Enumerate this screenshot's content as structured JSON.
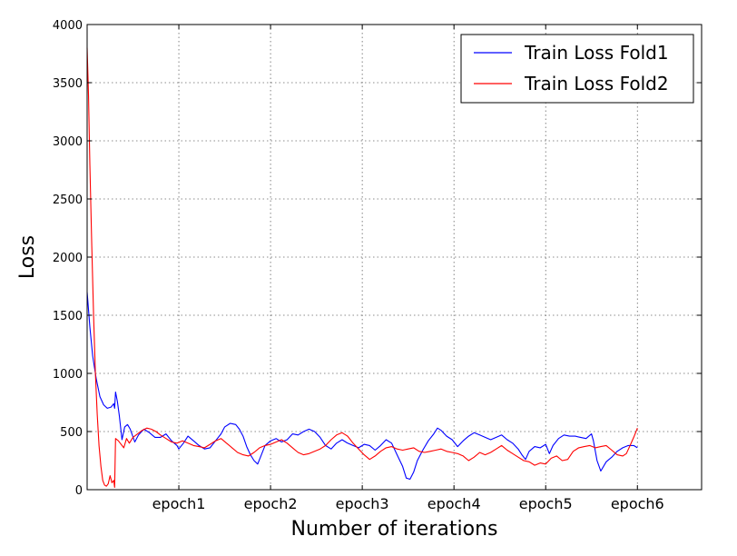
{
  "chart_data": {
    "type": "line",
    "title": "",
    "xlabel": "Number of iterations",
    "ylabel": "Loss",
    "xlim": [
      0,
      6.7
    ],
    "ylim": [
      0,
      4000
    ],
    "yticks": [
      0,
      500,
      1000,
      1500,
      2000,
      2500,
      3000,
      3500,
      4000
    ],
    "xticks": [
      {
        "value": 1,
        "label": "epoch1"
      },
      {
        "value": 2,
        "label": "epoch2"
      },
      {
        "value": 3,
        "label": "epoch3"
      },
      {
        "value": 4,
        "label": "epoch4"
      },
      {
        "value": 5,
        "label": "epoch5"
      },
      {
        "value": 6,
        "label": "epoch6"
      }
    ],
    "grid": true,
    "legend_position": "top-right",
    "series": [
      {
        "name": "Train Loss Fold1",
        "color": "#0000ff",
        "points": [
          [
            0.0,
            1700
          ],
          [
            0.03,
            1400
          ],
          [
            0.06,
            1150
          ],
          [
            0.1,
            950
          ],
          [
            0.14,
            800
          ],
          [
            0.18,
            730
          ],
          [
            0.22,
            700
          ],
          [
            0.26,
            710
          ],
          [
            0.29,
            740
          ],
          [
            0.3,
            700
          ],
          [
            0.31,
            840
          ],
          [
            0.33,
            760
          ],
          [
            0.35,
            640
          ],
          [
            0.38,
            430
          ],
          [
            0.41,
            540
          ],
          [
            0.44,
            560
          ],
          [
            0.47,
            520
          ],
          [
            0.52,
            410
          ],
          [
            0.56,
            470
          ],
          [
            0.62,
            520
          ],
          [
            0.68,
            490
          ],
          [
            0.74,
            450
          ],
          [
            0.8,
            450
          ],
          [
            0.86,
            480
          ],
          [
            0.92,
            420
          ],
          [
            0.98,
            380
          ],
          [
            1.0,
            350
          ],
          [
            1.05,
            400
          ],
          [
            1.1,
            460
          ],
          [
            1.16,
            420
          ],
          [
            1.22,
            380
          ],
          [
            1.28,
            350
          ],
          [
            1.34,
            360
          ],
          [
            1.4,
            420
          ],
          [
            1.46,
            480
          ],
          [
            1.5,
            540
          ],
          [
            1.56,
            570
          ],
          [
            1.62,
            560
          ],
          [
            1.66,
            520
          ],
          [
            1.7,
            460
          ],
          [
            1.74,
            370
          ],
          [
            1.78,
            300
          ],
          [
            1.82,
            250
          ],
          [
            1.86,
            220
          ],
          [
            1.9,
            300
          ],
          [
            1.94,
            380
          ],
          [
            2.0,
            420
          ],
          [
            2.06,
            440
          ],
          [
            2.12,
            410
          ],
          [
            2.18,
            430
          ],
          [
            2.24,
            480
          ],
          [
            2.3,
            470
          ],
          [
            2.36,
            500
          ],
          [
            2.42,
            520
          ],
          [
            2.48,
            500
          ],
          [
            2.54,
            450
          ],
          [
            2.6,
            380
          ],
          [
            2.66,
            350
          ],
          [
            2.72,
            400
          ],
          [
            2.78,
            430
          ],
          [
            2.84,
            400
          ],
          [
            2.9,
            380
          ],
          [
            2.96,
            360
          ],
          [
            3.02,
            390
          ],
          [
            3.08,
            380
          ],
          [
            3.14,
            340
          ],
          [
            3.2,
            380
          ],
          [
            3.26,
            430
          ],
          [
            3.32,
            400
          ],
          [
            3.38,
            300
          ],
          [
            3.44,
            200
          ],
          [
            3.48,
            100
          ],
          [
            3.52,
            90
          ],
          [
            3.56,
            150
          ],
          [
            3.6,
            250
          ],
          [
            3.66,
            340
          ],
          [
            3.72,
            420
          ],
          [
            3.78,
            480
          ],
          [
            3.82,
            530
          ],
          [
            3.86,
            510
          ],
          [
            3.92,
            460
          ],
          [
            3.98,
            430
          ],
          [
            4.04,
            370
          ],
          [
            4.1,
            420
          ],
          [
            4.16,
            460
          ],
          [
            4.22,
            490
          ],
          [
            4.28,
            470
          ],
          [
            4.34,
            450
          ],
          [
            4.4,
            430
          ],
          [
            4.46,
            450
          ],
          [
            4.52,
            470
          ],
          [
            4.58,
            430
          ],
          [
            4.64,
            400
          ],
          [
            4.7,
            350
          ],
          [
            4.74,
            300
          ],
          [
            4.78,
            260
          ],
          [
            4.82,
            330
          ],
          [
            4.88,
            370
          ],
          [
            4.94,
            360
          ],
          [
            5.0,
            390
          ],
          [
            5.04,
            310
          ],
          [
            5.08,
            380
          ],
          [
            5.14,
            440
          ],
          [
            5.2,
            470
          ],
          [
            5.26,
            460
          ],
          [
            5.32,
            460
          ],
          [
            5.38,
            450
          ],
          [
            5.44,
            440
          ],
          [
            5.5,
            480
          ],
          [
            5.52,
            420
          ],
          [
            5.56,
            250
          ],
          [
            5.6,
            160
          ],
          [
            5.66,
            240
          ],
          [
            5.72,
            280
          ],
          [
            5.78,
            330
          ],
          [
            5.84,
            360
          ],
          [
            5.9,
            380
          ],
          [
            5.96,
            380
          ],
          [
            6.0,
            360
          ]
        ]
      },
      {
        "name": "Train Loss Fold2",
        "color": "#ff0000",
        "points": [
          [
            0.0,
            3800
          ],
          [
            0.015,
            3400
          ],
          [
            0.03,
            2800
          ],
          [
            0.05,
            2100
          ],
          [
            0.07,
            1500
          ],
          [
            0.09,
            1000
          ],
          [
            0.11,
            650
          ],
          [
            0.13,
            380
          ],
          [
            0.15,
            200
          ],
          [
            0.17,
            80
          ],
          [
            0.19,
            40
          ],
          [
            0.21,
            30
          ],
          [
            0.23,
            50
          ],
          [
            0.25,
            120
          ],
          [
            0.27,
            60
          ],
          [
            0.29,
            80
          ],
          [
            0.3,
            20
          ],
          [
            0.31,
            440
          ],
          [
            0.34,
            420
          ],
          [
            0.37,
            390
          ],
          [
            0.4,
            360
          ],
          [
            0.43,
            440
          ],
          [
            0.46,
            400
          ],
          [
            0.5,
            450
          ],
          [
            0.55,
            480
          ],
          [
            0.6,
            510
          ],
          [
            0.65,
            530
          ],
          [
            0.7,
            520
          ],
          [
            0.75,
            500
          ],
          [
            0.8,
            470
          ],
          [
            0.86,
            440
          ],
          [
            0.92,
            410
          ],
          [
            0.98,
            400
          ],
          [
            1.04,
            420
          ],
          [
            1.1,
            400
          ],
          [
            1.16,
            380
          ],
          [
            1.22,
            370
          ],
          [
            1.28,
            360
          ],
          [
            1.34,
            390
          ],
          [
            1.4,
            420
          ],
          [
            1.46,
            440
          ],
          [
            1.52,
            400
          ],
          [
            1.58,
            360
          ],
          [
            1.64,
            320
          ],
          [
            1.7,
            300
          ],
          [
            1.76,
            290
          ],
          [
            1.82,
            320
          ],
          [
            1.88,
            360
          ],
          [
            1.94,
            380
          ],
          [
            2.0,
            390
          ],
          [
            2.06,
            410
          ],
          [
            2.12,
            430
          ],
          [
            2.18,
            400
          ],
          [
            2.24,
            360
          ],
          [
            2.3,
            320
          ],
          [
            2.36,
            300
          ],
          [
            2.42,
            310
          ],
          [
            2.48,
            330
          ],
          [
            2.54,
            350
          ],
          [
            2.6,
            380
          ],
          [
            2.66,
            430
          ],
          [
            2.72,
            470
          ],
          [
            2.78,
            490
          ],
          [
            2.84,
            460
          ],
          [
            2.9,
            400
          ],
          [
            2.96,
            350
          ],
          [
            3.02,
            300
          ],
          [
            3.08,
            260
          ],
          [
            3.14,
            290
          ],
          [
            3.2,
            330
          ],
          [
            3.26,
            360
          ],
          [
            3.32,
            370
          ],
          [
            3.38,
            350
          ],
          [
            3.44,
            340
          ],
          [
            3.5,
            350
          ],
          [
            3.56,
            360
          ],
          [
            3.62,
            330
          ],
          [
            3.68,
            320
          ],
          [
            3.74,
            330
          ],
          [
            3.8,
            340
          ],
          [
            3.86,
            350
          ],
          [
            3.92,
            330
          ],
          [
            3.98,
            320
          ],
          [
            4.04,
            310
          ],
          [
            4.1,
            290
          ],
          [
            4.16,
            250
          ],
          [
            4.22,
            280
          ],
          [
            4.28,
            320
          ],
          [
            4.34,
            300
          ],
          [
            4.4,
            320
          ],
          [
            4.46,
            350
          ],
          [
            4.52,
            380
          ],
          [
            4.58,
            340
          ],
          [
            4.64,
            310
          ],
          [
            4.7,
            280
          ],
          [
            4.76,
            250
          ],
          [
            4.82,
            240
          ],
          [
            4.88,
            210
          ],
          [
            4.94,
            230
          ],
          [
            5.0,
            220
          ],
          [
            5.06,
            270
          ],
          [
            5.12,
            290
          ],
          [
            5.18,
            250
          ],
          [
            5.24,
            260
          ],
          [
            5.3,
            330
          ],
          [
            5.36,
            360
          ],
          [
            5.42,
            370
          ],
          [
            5.48,
            380
          ],
          [
            5.54,
            360
          ],
          [
            5.6,
            370
          ],
          [
            5.66,
            380
          ],
          [
            5.72,
            340
          ],
          [
            5.78,
            300
          ],
          [
            5.84,
            290
          ],
          [
            5.88,
            310
          ],
          [
            5.92,
            380
          ],
          [
            5.96,
            450
          ],
          [
            6.0,
            530
          ]
        ]
      }
    ]
  }
}
